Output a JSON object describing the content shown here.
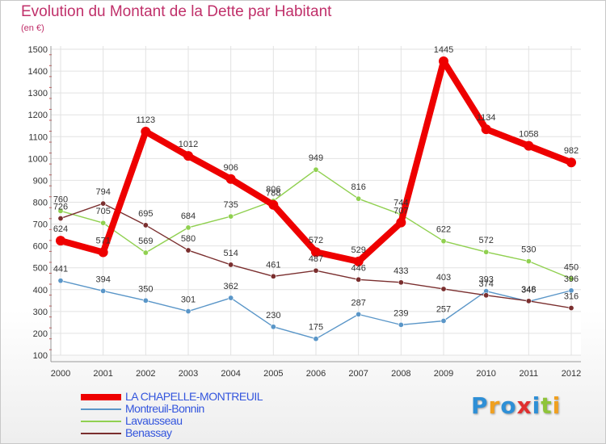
{
  "title": "Evolution du Montant de la Dette par Habitant",
  "subtitle": "(en €)",
  "brand": {
    "text": "Proxiti",
    "letters": [
      {
        "ch": "P",
        "color": "#2e8fd6"
      },
      {
        "ch": "r",
        "color": "#f0a020"
      },
      {
        "ch": "o",
        "color": "#2e8fd6"
      },
      {
        "ch": "x",
        "color": "#e03030"
      },
      {
        "ch": "i",
        "color": "#2e8fd6"
      },
      {
        "ch": "t",
        "color": "#8fc43a"
      },
      {
        "ch": "i",
        "color": "#f0a020"
      }
    ]
  },
  "chart_data": {
    "type": "line",
    "title": "Evolution du Montant de la Dette par Habitant",
    "ylabel": "(en €)",
    "xlabel": "",
    "x": [
      "2000",
      "2001",
      "2002",
      "2003",
      "2004",
      "2005",
      "2006",
      "2007",
      "2008",
      "2009",
      "2010",
      "2011",
      "2012"
    ],
    "ylim": [
      100,
      1500
    ],
    "yticks": [
      100,
      200,
      300,
      400,
      500,
      600,
      700,
      800,
      900,
      1000,
      1100,
      1200,
      1300,
      1400,
      1500
    ],
    "grid": true,
    "legend_position": "bottom-left",
    "series": [
      {
        "name": "LA CHAPELLE-MONTREUIL",
        "color": "#ee0000",
        "values": [
          624,
          571,
          1123,
          1012,
          906,
          788,
          572,
          529,
          707,
          1445,
          1134,
          1058,
          982
        ]
      },
      {
        "name": "Montreuil-Bonnin",
        "color": "#5a96c8",
        "values": [
          441,
          394,
          350,
          301,
          362,
          230,
          175,
          287,
          239,
          257,
          393,
          346,
          396
        ]
      },
      {
        "name": "Lavausseau",
        "color": "#90d050",
        "values": [
          760,
          705,
          569,
          684,
          735,
          806,
          949,
          816,
          744,
          622,
          572,
          530,
          450
        ]
      },
      {
        "name": "Benassay",
        "color": "#7a2e2e",
        "values": [
          726,
          794,
          695,
          580,
          514,
          461,
          487,
          446,
          433,
          403,
          374,
          348,
          316
        ]
      }
    ]
  }
}
